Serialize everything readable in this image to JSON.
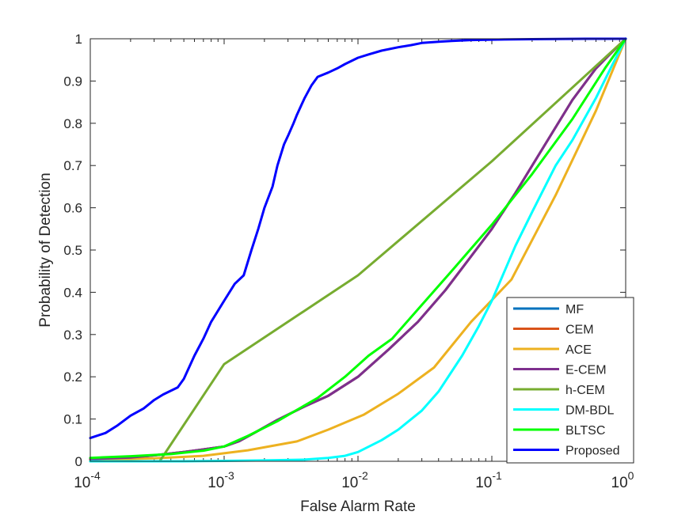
{
  "chart_data": {
    "type": "line",
    "title": "",
    "xlabel": "False Alarm Rate",
    "ylabel": "Probability of Detection",
    "xscale": "log",
    "xlim": [
      0.0001,
      1
    ],
    "ylim": [
      0,
      1
    ],
    "grid": false,
    "legend_position": "bottom-right",
    "x_ticks": [
      {
        "value": 0.0001,
        "base": "10",
        "exp": "-4"
      },
      {
        "value": 0.001,
        "base": "10",
        "exp": "-3"
      },
      {
        "value": 0.01,
        "base": "10",
        "exp": "-2"
      },
      {
        "value": 0.1,
        "base": "10",
        "exp": "-1"
      },
      {
        "value": 1,
        "base": "10",
        "exp": "0"
      }
    ],
    "y_ticks": [
      {
        "value": 0,
        "label": "0"
      },
      {
        "value": 0.1,
        "label": "0.1"
      },
      {
        "value": 0.2,
        "label": "0.2"
      },
      {
        "value": 0.3,
        "label": "0.3"
      },
      {
        "value": 0.4,
        "label": "0.4"
      },
      {
        "value": 0.5,
        "label": "0.5"
      },
      {
        "value": 0.6,
        "label": "0.6"
      },
      {
        "value": 0.7,
        "label": "0.7"
      },
      {
        "value": 0.8,
        "label": "0.8"
      },
      {
        "value": 0.9,
        "label": "0.9"
      },
      {
        "value": 1,
        "label": "1"
      }
    ],
    "series": [
      {
        "name": "MF",
        "color": "#0072BD",
        "x": [
          0.0001,
          0.0002,
          0.0003,
          0.0005,
          0.0007,
          0.001,
          0.0013,
          0.0017,
          0.0025,
          0.004,
          0.006,
          0.01,
          0.017,
          0.028,
          0.045,
          0.07,
          0.1,
          0.15,
          0.25,
          0.4,
          0.6,
          0.8,
          1
        ],
        "y": [
          0.005,
          0.009,
          0.014,
          0.022,
          0.028,
          0.035,
          0.048,
          0.068,
          0.098,
          0.13,
          0.155,
          0.2,
          0.265,
          0.33,
          0.405,
          0.485,
          0.55,
          0.635,
          0.75,
          0.855,
          0.93,
          0.97,
          1.0
        ]
      },
      {
        "name": "CEM",
        "color": "#D95319",
        "x": [
          0.0001,
          0.0002,
          0.0003,
          0.0005,
          0.0007,
          0.001,
          0.0013,
          0.0017,
          0.0025,
          0.004,
          0.006,
          0.01,
          0.017,
          0.028,
          0.045,
          0.07,
          0.1,
          0.15,
          0.25,
          0.4,
          0.6,
          0.8,
          1
        ],
        "y": [
          0.005,
          0.009,
          0.014,
          0.022,
          0.028,
          0.035,
          0.048,
          0.068,
          0.098,
          0.13,
          0.155,
          0.2,
          0.265,
          0.33,
          0.405,
          0.485,
          0.55,
          0.635,
          0.75,
          0.855,
          0.93,
          0.97,
          1.0
        ]
      },
      {
        "name": "ACE",
        "color": "#EDB120",
        "x": [
          0.0001,
          0.0003,
          0.0007,
          0.0015,
          0.0035,
          0.006,
          0.011,
          0.02,
          0.037,
          0.07,
          0.14,
          0.3,
          0.6,
          1
        ],
        "y": [
          0.003,
          0.007,
          0.013,
          0.026,
          0.047,
          0.075,
          0.11,
          0.16,
          0.222,
          0.33,
          0.43,
          0.63,
          0.83,
          1.0
        ]
      },
      {
        "name": "E-CEM",
        "color": "#7E2F8E",
        "x": [
          0.0001,
          0.0002,
          0.0003,
          0.0005,
          0.0007,
          0.001,
          0.0013,
          0.0017,
          0.0025,
          0.004,
          0.006,
          0.01,
          0.017,
          0.028,
          0.045,
          0.07,
          0.1,
          0.15,
          0.25,
          0.4,
          0.6,
          0.8,
          1
        ],
        "y": [
          0.005,
          0.009,
          0.014,
          0.022,
          0.028,
          0.035,
          0.048,
          0.068,
          0.098,
          0.13,
          0.155,
          0.2,
          0.265,
          0.33,
          0.405,
          0.485,
          0.55,
          0.635,
          0.75,
          0.855,
          0.93,
          0.97,
          1.0
        ]
      },
      {
        "name": "h-CEM",
        "color": "#77AC30",
        "x": [
          0.0001,
          0.00033,
          0.001,
          0.01,
          0.1,
          1
        ],
        "y": [
          0.0,
          0.0,
          0.23,
          0.44,
          0.71,
          1.0
        ]
      },
      {
        "name": "DM-BDL",
        "color": "#00FFFF",
        "x": [
          0.0001,
          0.0005,
          0.001,
          0.002,
          0.004,
          0.006,
          0.008,
          0.01,
          0.015,
          0.02,
          0.03,
          0.04,
          0.06,
          0.08,
          0.1,
          0.15,
          0.2,
          0.3,
          0.4,
          0.6,
          0.8,
          1
        ],
        "y": [
          0.0,
          0.0,
          0.001,
          0.002,
          0.004,
          0.008,
          0.013,
          0.022,
          0.05,
          0.075,
          0.12,
          0.165,
          0.25,
          0.32,
          0.38,
          0.51,
          0.59,
          0.7,
          0.76,
          0.86,
          0.94,
          1.0
        ]
      },
      {
        "name": "BLTSC",
        "color": "#00FF00",
        "x": [
          0.0001,
          0.0002,
          0.0004,
          0.0007,
          0.001,
          0.0015,
          0.0025,
          0.005,
          0.008,
          0.012,
          0.018,
          0.03,
          0.05,
          0.1,
          0.2,
          0.4,
          0.7,
          1
        ],
        "y": [
          0.008,
          0.012,
          0.017,
          0.025,
          0.035,
          0.06,
          0.095,
          0.15,
          0.2,
          0.25,
          0.29,
          0.37,
          0.45,
          0.56,
          0.68,
          0.81,
          0.93,
          1.0
        ]
      },
      {
        "name": "Proposed",
        "color": "#0000FF",
        "x": [
          0.0001,
          0.00013,
          0.00016,
          0.0002,
          0.00025,
          0.0003,
          0.00035,
          0.00045,
          0.0005,
          0.0006,
          0.0007,
          0.0008,
          0.001,
          0.0012,
          0.0014,
          0.0016,
          0.0018,
          0.002,
          0.0023,
          0.0025,
          0.0028,
          0.003,
          0.0033,
          0.0035,
          0.0038,
          0.004,
          0.0045,
          0.005,
          0.006,
          0.007,
          0.008,
          0.01,
          0.012,
          0.015,
          0.02,
          0.025,
          0.03,
          0.04,
          0.05,
          0.07,
          0.1,
          0.2,
          0.5,
          1
        ],
        "y": [
          0.055,
          0.067,
          0.085,
          0.108,
          0.125,
          0.145,
          0.158,
          0.175,
          0.195,
          0.25,
          0.29,
          0.33,
          0.38,
          0.42,
          0.44,
          0.5,
          0.55,
          0.6,
          0.65,
          0.7,
          0.75,
          0.77,
          0.8,
          0.82,
          0.845,
          0.86,
          0.89,
          0.91,
          0.92,
          0.93,
          0.94,
          0.955,
          0.963,
          0.972,
          0.98,
          0.985,
          0.99,
          0.993,
          0.995,
          0.997,
          0.998,
          0.999,
          1.0,
          1.0
        ]
      }
    ]
  }
}
